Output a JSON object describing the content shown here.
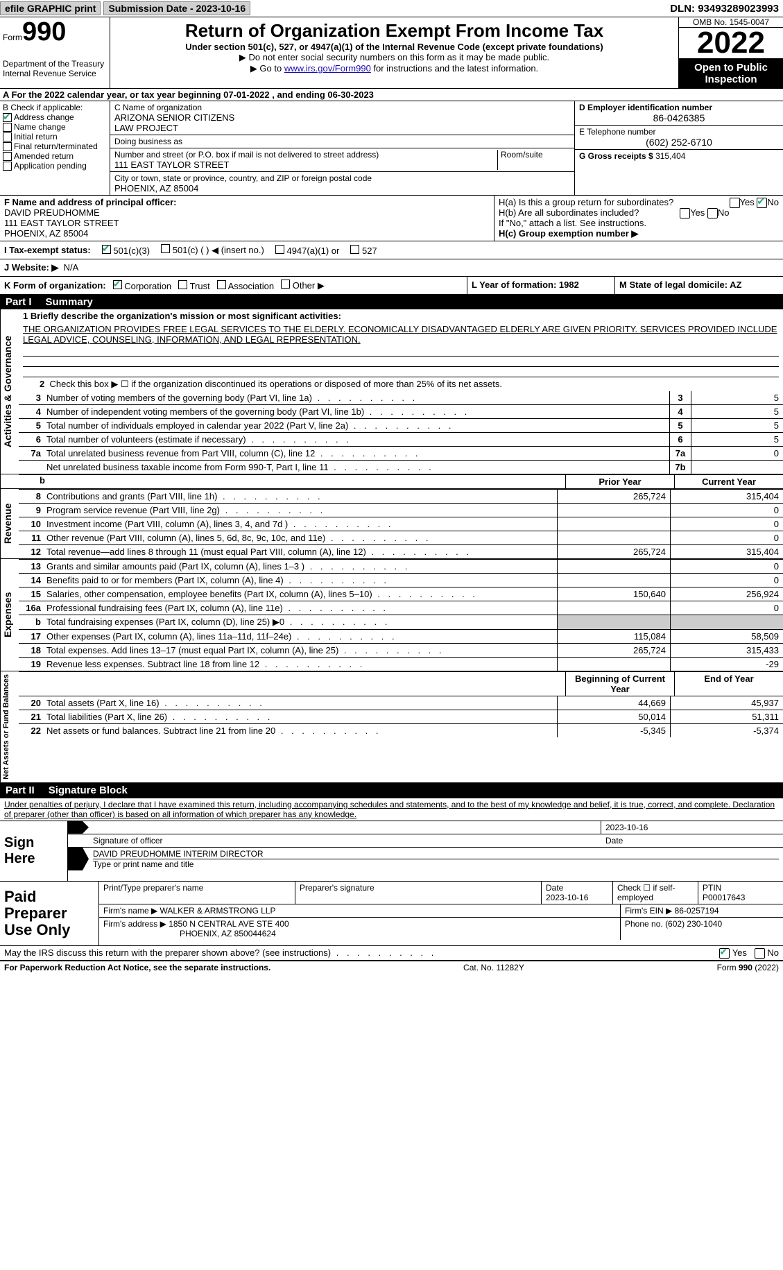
{
  "topbar": {
    "efile": "efile GRAPHIC print",
    "subdate_label": "Submission Date - ",
    "subdate": "2023-10-16",
    "dln_label": "DLN: ",
    "dln": "93493289023993"
  },
  "header": {
    "form_word": "Form",
    "form_num": "990",
    "dept": "Department of the Treasury",
    "irs": "Internal Revenue Service",
    "title": "Return of Organization Exempt From Income Tax",
    "subtitle": "Under section 501(c), 527, or 4947(a)(1) of the Internal Revenue Code (except private foundations)",
    "ssn_note": "▶ Do not enter social security numbers on this form as it may be made public.",
    "goto": "▶ Go to ",
    "goto_link": "www.irs.gov/Form990",
    "goto_after": " for instructions and the latest information.",
    "omb": "OMB No. 1545-0047",
    "year": "2022",
    "openpub": "Open to Public Inspection"
  },
  "row_a": "A For the 2022 calendar year, or tax year beginning 07-01-2022    , and ending 06-30-2023",
  "col_b": {
    "header": "B Check if applicable:",
    "items": [
      {
        "label": "Address change",
        "checked": true
      },
      {
        "label": "Name change",
        "checked": false
      },
      {
        "label": "Initial return",
        "checked": false
      },
      {
        "label": "Final return/terminated",
        "checked": false
      },
      {
        "label": "Amended return",
        "checked": false
      },
      {
        "label": "Application pending",
        "checked": false
      }
    ]
  },
  "col_c": {
    "name_label": "C Name of organization",
    "name": "ARIZONA SENIOR CITIZENS\nLAW PROJECT",
    "dba_label": "Doing business as",
    "dba": "",
    "street_label": "Number and street (or P.O. box if mail is not delivered to street address)",
    "street": "111 EAST TAYLOR STREET",
    "room_label": "Room/suite",
    "room": "",
    "city_label": "City or town, state or province, country, and ZIP or foreign postal code",
    "city": "PHOENIX, AZ  85004"
  },
  "col_d": {
    "ein_label": "D Employer identification number",
    "ein": "86-0426385",
    "tel_label": "E Telephone number",
    "tel": "(602) 252-6710",
    "gross_label": "G Gross receipts $ ",
    "gross": "315,404"
  },
  "col_f": {
    "label": "F Name and address of principal officer:",
    "name": "DAVID PREUDHOMME",
    "street": "111 EAST TAYLOR STREET",
    "city": "PHOENIX, AZ  85004"
  },
  "col_h": {
    "ha": "H(a)  Is this a group return for subordinates?",
    "ha_yes": "Yes",
    "ha_no": "No",
    "ha_no_checked": true,
    "hb": "H(b)  Are all subordinates included?",
    "hb_yes": "Yes",
    "hb_no": "No",
    "hb_note": "If \"No,\" attach a list. See instructions.",
    "hc": "H(c)  Group exemption number ▶"
  },
  "tax_exempt": {
    "label": "I   Tax-exempt status:",
    "o1": "501(c)(3)",
    "o1_checked": true,
    "o2": "501(c) (   ) ◀ (insert no.)",
    "o3": "4947(a)(1) or",
    "o4": "527"
  },
  "website": {
    "label": "J  Website: ▶",
    "value": "N/A"
  },
  "k_row": {
    "k_label": "K Form of organization:",
    "corp": "Corporation",
    "corp_checked": true,
    "trust": "Trust",
    "assoc": "Association",
    "other": "Other ▶",
    "l": "L Year of formation: 1982",
    "m": "M State of legal domicile: AZ"
  },
  "part1": {
    "tag": "Part I",
    "title": "Summary",
    "side1": "Activities & Governance",
    "q1": "1   Briefly describe the organization's mission or most significant activities:",
    "mission": "THE ORGANIZATION PROVIDES FREE LEGAL SERVICES TO THE ELDERLY. ECONOMICALLY DISADVANTAGED ELDERLY ARE GIVEN PRIORITY. SERVICES PROVIDED INCLUDE LEGAL ADVICE, COUNSELING, INFORMATION, AND LEGAL REPRESENTATION.",
    "q2": "Check this box ▶ ☐ if the organization discontinued its operations or disposed of more than 25% of its net assets.",
    "lines": [
      {
        "n": "3",
        "d": "Number of voting members of the governing body (Part VI, line 1a)",
        "box": "3",
        "v": "5"
      },
      {
        "n": "4",
        "d": "Number of independent voting members of the governing body (Part VI, line 1b)",
        "box": "4",
        "v": "5"
      },
      {
        "n": "5",
        "d": "Total number of individuals employed in calendar year 2022 (Part V, line 2a)",
        "box": "5",
        "v": "5"
      },
      {
        "n": "6",
        "d": "Total number of volunteers (estimate if necessary)",
        "box": "6",
        "v": "5"
      },
      {
        "n": "7a",
        "d": "Total unrelated business revenue from Part VIII, column (C), line 12",
        "box": "7a",
        "v": "0"
      },
      {
        "n": "",
        "d": "Net unrelated business taxable income from Form 990-T, Part I, line 11",
        "box": "7b",
        "v": ""
      }
    ],
    "prior_hdr": "Prior Year",
    "curr_hdr": "Current Year",
    "side2": "Revenue",
    "rev": [
      {
        "n": "8",
        "d": "Contributions and grants (Part VIII, line 1h)",
        "p": "265,724",
        "c": "315,404"
      },
      {
        "n": "9",
        "d": "Program service revenue (Part VIII, line 2g)",
        "p": "",
        "c": "0"
      },
      {
        "n": "10",
        "d": "Investment income (Part VIII, column (A), lines 3, 4, and 7d )",
        "p": "",
        "c": "0"
      },
      {
        "n": "11",
        "d": "Other revenue (Part VIII, column (A), lines 5, 6d, 8c, 9c, 10c, and 11e)",
        "p": "",
        "c": "0"
      },
      {
        "n": "12",
        "d": "Total revenue—add lines 8 through 11 (must equal Part VIII, column (A), line 12)",
        "p": "265,724",
        "c": "315,404"
      }
    ],
    "side3": "Expenses",
    "exp": [
      {
        "n": "13",
        "d": "Grants and similar amounts paid (Part IX, column (A), lines 1–3 )",
        "p": "",
        "c": "0"
      },
      {
        "n": "14",
        "d": "Benefits paid to or for members (Part IX, column (A), line 4)",
        "p": "",
        "c": "0"
      },
      {
        "n": "15",
        "d": "Salaries, other compensation, employee benefits (Part IX, column (A), lines 5–10)",
        "p": "150,640",
        "c": "256,924"
      },
      {
        "n": "16a",
        "d": "Professional fundraising fees (Part IX, column (A), line 11e)",
        "p": "",
        "c": "0"
      },
      {
        "n": "b",
        "d": "Total fundraising expenses (Part IX, column (D), line 25) ▶0",
        "p": "shaded",
        "c": "shaded"
      },
      {
        "n": "17",
        "d": "Other expenses (Part IX, column (A), lines 11a–11d, 11f–24e)",
        "p": "115,084",
        "c": "58,509"
      },
      {
        "n": "18",
        "d": "Total expenses. Add lines 13–17 (must equal Part IX, column (A), line 25)",
        "p": "265,724",
        "c": "315,433"
      },
      {
        "n": "19",
        "d": "Revenue less expenses. Subtract line 18 from line 12",
        "p": "",
        "c": "-29"
      }
    ],
    "side4": "Net Assets or Fund Balances",
    "beg_hdr": "Beginning of Current Year",
    "end_hdr": "End of Year",
    "net": [
      {
        "n": "20",
        "d": "Total assets (Part X, line 16)",
        "p": "44,669",
        "c": "45,937"
      },
      {
        "n": "21",
        "d": "Total liabilities (Part X, line 26)",
        "p": "50,014",
        "c": "51,311"
      },
      {
        "n": "22",
        "d": "Net assets or fund balances. Subtract line 21 from line 20",
        "p": "-5,345",
        "c": "-5,374"
      }
    ]
  },
  "part2": {
    "tag": "Part II",
    "title": "Signature Block",
    "decl": "Under penalties of perjury, I declare that I have examined this return, including accompanying schedules and statements, and to the best of my knowledge and belief, it is true, correct, and complete. Declaration of preparer (other than officer) is based on all information of which preparer has any knowledge.",
    "sign_here": "Sign Here",
    "sig_date": "2023-10-16",
    "sig_of_officer": "Signature of officer",
    "date_label": "Date",
    "officer_name": "DAVID PREUDHOMME  INTERIM DIRECTOR",
    "type_name": "Type or print name and title",
    "paid_prep": "Paid Preparer Use Only",
    "prep_name_label": "Print/Type preparer's name",
    "prep_sig_label": "Preparer's signature",
    "prep_date_label": "Date",
    "prep_date": "2023-10-16",
    "self_emp": "Check ☐ if self-employed",
    "ptin_label": "PTIN",
    "ptin": "P00017643",
    "firm_name_label": "Firm's name    ▶ ",
    "firm_name": "WALKER & ARMSTRONG LLP",
    "firm_ein_label": "Firm's EIN ▶ ",
    "firm_ein": "86-0257194",
    "firm_addr_label": "Firm's address ▶ ",
    "firm_addr": "1850 N CENTRAL AVE STE 400",
    "firm_city": "PHOENIX, AZ  850044624",
    "firm_phone_label": "Phone no. ",
    "firm_phone": "(602) 230-1040",
    "may_discuss": "May the IRS discuss this return with the preparer shown above? (see instructions)",
    "yes": "Yes",
    "no": "No",
    "yes_checked": true
  },
  "footer": {
    "left": "For Paperwork Reduction Act Notice, see the separate instructions.",
    "mid": "Cat. No. 11282Y",
    "right": "Form 990 (2022)"
  }
}
